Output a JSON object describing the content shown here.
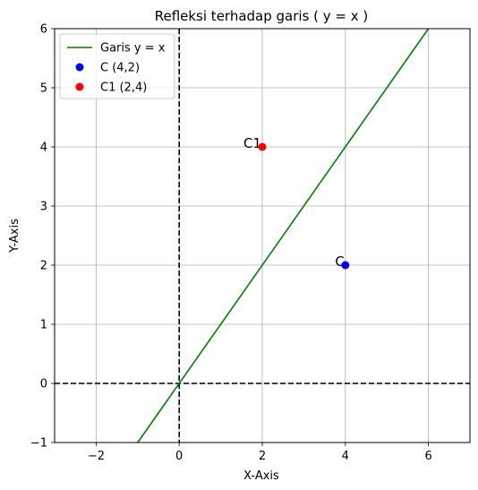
{
  "chart_data": {
    "type": "line",
    "title": "Refleksi terhadap garis ( y = x )",
    "xlabel": "X-Axis",
    "ylabel": "Y-Axis",
    "xlim": [
      -3,
      7
    ],
    "ylim": [
      -1,
      6
    ],
    "xticks": [
      -2,
      0,
      2,
      4,
      6
    ],
    "yticks": [
      -1,
      0,
      1,
      2,
      3,
      4,
      5,
      6
    ],
    "grid": true,
    "legend_position": "top-left",
    "series": [
      {
        "name": "Garis y = x",
        "kind": "line",
        "color": "#008000",
        "x": [
          -1,
          6
        ],
        "y": [
          -1,
          6
        ]
      },
      {
        "name": "C (4,2)",
        "kind": "scatter",
        "color": "#0000ff",
        "x": [
          4
        ],
        "y": [
          2
        ],
        "label": "C"
      },
      {
        "name": "C1 (2,4)",
        "kind": "scatter",
        "color": "#ff0000",
        "x": [
          2
        ],
        "y": [
          4
        ],
        "label": "C1"
      }
    ],
    "reference_lines": [
      {
        "axis": "x",
        "value": 0,
        "style": "dashed",
        "color": "#000000"
      },
      {
        "axis": "y",
        "value": 0,
        "style": "dashed",
        "color": "#000000"
      }
    ]
  }
}
